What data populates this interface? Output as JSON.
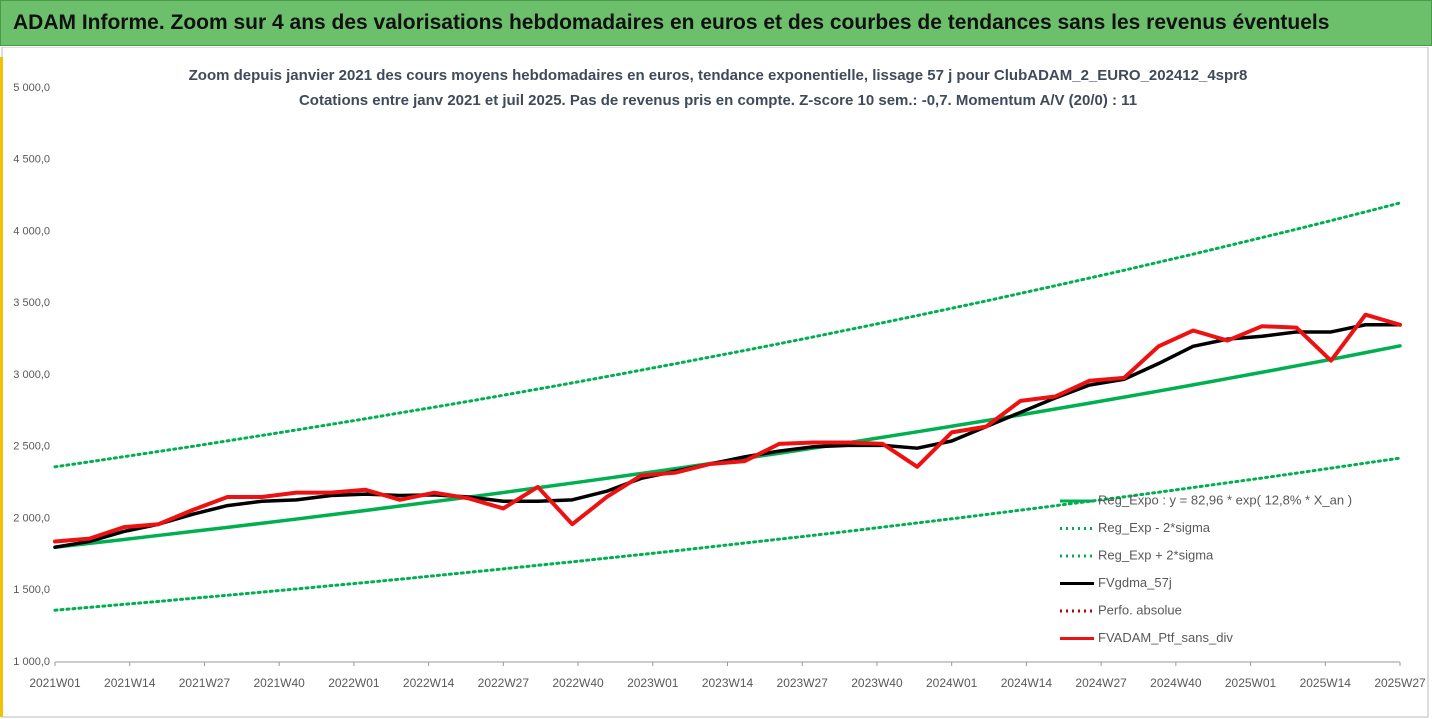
{
  "header": {
    "title": "ADAM Informe. Zoom sur 4 ans des valorisations hebdomadaires en euros et des courbes de tendances sans les revenus éventuels"
  },
  "chart_data": {
    "type": "line",
    "title": "Zoom depuis janvier 2021 des cours moyens hebdomadaires  en euros, tendance exponentielle, lissage 57 j pour ClubADAM_2_EURO_202412_4spr8",
    "subtitle": "Cotations  entre janv 2021 et juil 2025. Pas de revenus pris en compte. Z-score 10 sem.: -0,7. Momentum  A/V (20/0) : 11",
    "x": [
      0,
      6,
      12,
      18,
      24,
      30,
      36,
      42,
      48,
      54,
      60,
      66,
      72,
      78,
      84,
      90,
      96,
      102,
      108,
      114,
      120,
      126,
      132,
      138,
      144,
      150,
      156,
      162,
      168,
      174,
      180,
      186,
      192,
      198,
      204,
      210,
      216,
      222,
      228,
      234
    ],
    "xlim": [
      0,
      234
    ],
    "xticks": [
      {
        "value": 0,
        "label": "2021W01"
      },
      {
        "value": 13,
        "label": "2021W14"
      },
      {
        "value": 26,
        "label": "2021W27"
      },
      {
        "value": 39,
        "label": "2021W40"
      },
      {
        "value": 52,
        "label": "2022W01"
      },
      {
        "value": 65,
        "label": "2022W14"
      },
      {
        "value": 78,
        "label": "2022W27"
      },
      {
        "value": 91,
        "label": "2022W40"
      },
      {
        "value": 104,
        "label": "2023W01"
      },
      {
        "value": 117,
        "label": "2023W14"
      },
      {
        "value": 130,
        "label": "2023W27"
      },
      {
        "value": 143,
        "label": "2023W40"
      },
      {
        "value": 156,
        "label": "2024W01"
      },
      {
        "value": 169,
        "label": "2024W14"
      },
      {
        "value": 182,
        "label": "2024W27"
      },
      {
        "value": 195,
        "label": "2024W40"
      },
      {
        "value": 208,
        "label": "2025W01"
      },
      {
        "value": 221,
        "label": "2025W14"
      },
      {
        "value": 234,
        "label": "2025W27"
      }
    ],
    "ylim": [
      1000,
      5000
    ],
    "yticks": [
      {
        "value": 1000,
        "label": "1 000,0"
      },
      {
        "value": 1500,
        "label": "1 500,0"
      },
      {
        "value": 2000,
        "label": "2 000,0"
      },
      {
        "value": 2500,
        "label": "2 500,0"
      },
      {
        "value": 3000,
        "label": "3 000,0"
      },
      {
        "value": 3500,
        "label": "3 500,0"
      },
      {
        "value": 4000,
        "label": "4 000,0"
      },
      {
        "value": 4500,
        "label": "4 500,0"
      },
      {
        "value": 5000,
        "label": "5 000,0"
      }
    ],
    "grid": false,
    "series": [
      {
        "name": "Reg_Expo : y = 82,96 * exp( 12,8% *  X_an )",
        "color": "#00b050",
        "dash": "solid",
        "values": [
          1800,
          1827,
          1854,
          1882,
          1910,
          1938,
          1967,
          1996,
          2026,
          2056,
          2087,
          2118,
          2149,
          2181,
          2214,
          2247,
          2280,
          2314,
          2348,
          2383,
          2419,
          2455,
          2491,
          2528,
          2566,
          2604,
          2643,
          2682,
          2722,
          2763,
          2804,
          2846,
          2888,
          2931,
          2975,
          3019,
          3064,
          3109,
          3156,
          3203
        ]
      },
      {
        "name": "Reg_Exp - 2*sigma",
        "color": "#00b050",
        "dash": "dotted",
        "values": [
          1361,
          1381,
          1402,
          1422,
          1444,
          1465,
          1487,
          1509,
          1532,
          1554,
          1577,
          1601,
          1625,
          1649,
          1674,
          1698,
          1724,
          1749,
          1775,
          1802,
          1829,
          1856,
          1883,
          1911,
          1940,
          1969,
          1998,
          2028,
          2058,
          2089,
          2120,
          2151,
          2183,
          2216,
          2249,
          2282,
          2316,
          2351,
          2386,
          2421
        ]
      },
      {
        "name": "Reg_Exp + 2*sigma",
        "color": "#00b050",
        "dash": "dotted",
        "values": [
          2360,
          2395,
          2431,
          2467,
          2503,
          2541,
          2579,
          2617,
          2656,
          2695,
          2736,
          2776,
          2817,
          2859,
          2902,
          2945,
          2989,
          3034,
          3079,
          3125,
          3171,
          3218,
          3266,
          3315,
          3364,
          3414,
          3465,
          3516,
          3569,
          3622,
          3676,
          3730,
          3786,
          3842,
          3900,
          3958,
          4016,
          4076,
          4137,
          4199
        ]
      },
      {
        "name": "FVgdma_57j",
        "color": "#000000",
        "dash": "solid",
        "values": [
          1800,
          1840,
          1910,
          1960,
          2030,
          2090,
          2120,
          2130,
          2160,
          2170,
          2160,
          2165,
          2150,
          2120,
          2120,
          2130,
          2190,
          2280,
          2330,
          2380,
          2430,
          2470,
          2500,
          2510,
          2510,
          2490,
          2540,
          2640,
          2740,
          2840,
          2930,
          2970,
          3080,
          3200,
          3250,
          3270,
          3300,
          3300,
          3350,
          3350
        ]
      },
      {
        "name": "Perfo. absolue",
        "color": "#c00000",
        "dash": "dotted"
      },
      {
        "name": "FVADAM_Ptf_sans_div",
        "color": "#ee1111",
        "dash": "solid",
        "values": [
          1840,
          1860,
          1940,
          1960,
          2060,
          2150,
          2150,
          2180,
          2180,
          2200,
          2130,
          2180,
          2140,
          2070,
          2220,
          1960,
          2150,
          2300,
          2320,
          2380,
          2400,
          2520,
          2530,
          2530,
          2520,
          2360,
          2600,
          2640,
          2820,
          2850,
          2960,
          2980,
          3200,
          3310,
          3240,
          3340,
          3330,
          3100,
          3420,
          3350
        ]
      }
    ]
  }
}
